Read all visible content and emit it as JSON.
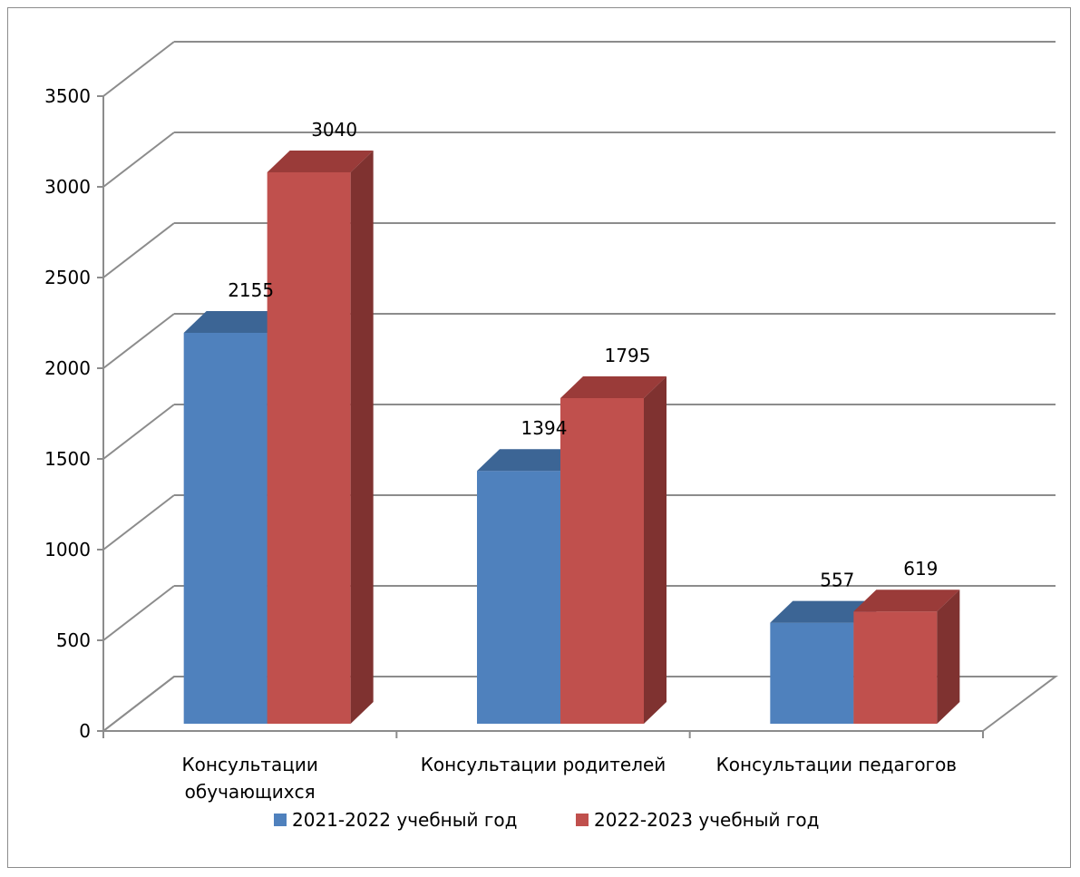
{
  "chart_data": {
    "type": "bar",
    "style": "3d-clustered-column",
    "categories": [
      [
        "Консультации",
        "обучающихся"
      ],
      [
        "Консультации родителей"
      ],
      [
        "Консультации педагогов"
      ]
    ],
    "series": [
      {
        "name": "2021-2022 учебный год",
        "values": [
          2155,
          1394,
          557
        ]
      },
      {
        "name": "2022-2023 учебный год",
        "values": [
          3040,
          1795,
          619
        ]
      }
    ],
    "ylim": [
      0,
      3500
    ],
    "yticks": [
      0,
      500,
      1000,
      1500,
      2000,
      2500,
      3000,
      3500
    ],
    "grid": true,
    "legend_position": "bottom",
    "colors": {
      "series": [
        "#4f81bd",
        "#c0504d"
      ],
      "series_top": [
        "#3c6595",
        "#9a3b39"
      ],
      "series_side": [
        "#2f4e74",
        "#7f3230"
      ],
      "grid": "#8c8c8c",
      "frame": "#8c8c8c"
    }
  }
}
